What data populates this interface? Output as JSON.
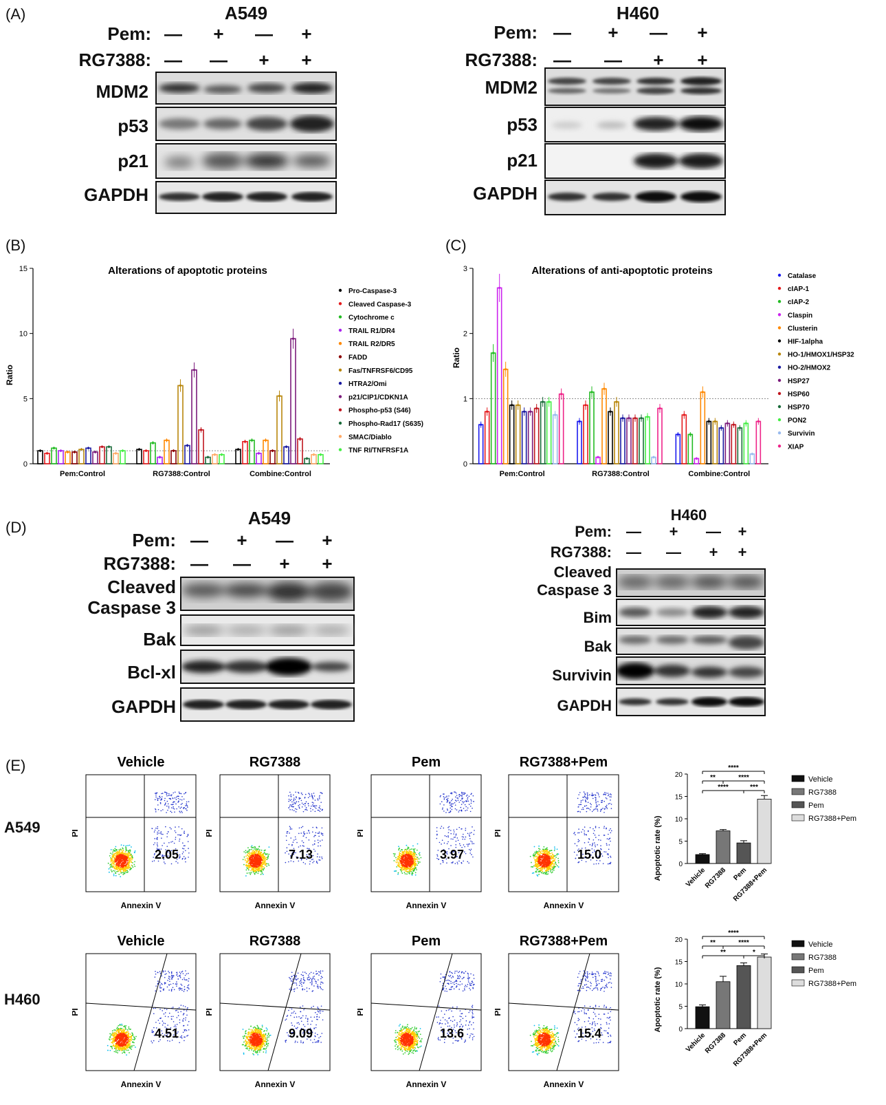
{
  "panels": {
    "A": "(A)",
    "B": "(B)",
    "C": "(C)",
    "D": "(D)",
    "E": "(E)"
  },
  "panelA": {
    "left": {
      "title": "A549",
      "pem_label": "Pem:",
      "rg_label": "RG7388:",
      "pem": [
        "—",
        "+",
        "—",
        "+"
      ],
      "rg": [
        "—",
        "—",
        "+",
        "+"
      ],
      "rows": [
        "MDM2",
        "p53",
        "p21",
        "GAPDH"
      ]
    },
    "right": {
      "title": "H460",
      "pem_label": "Pem:",
      "rg_label": "RG7388:",
      "pem": [
        "—",
        "+",
        "—",
        "+"
      ],
      "rg": [
        "—",
        "—",
        "+",
        "+"
      ],
      "rows": [
        "MDM2",
        "p53",
        "p21",
        "GAPDH"
      ]
    }
  },
  "panelD": {
    "left": {
      "title": "A549",
      "pem_label": "Pem:",
      "rg_label": "RG7388:",
      "pem": [
        "—",
        "+",
        "—",
        "+"
      ],
      "rg": [
        "—",
        "—",
        "+",
        "+"
      ],
      "rows": [
        "Cleaved",
        "Caspase 3",
        "Bak",
        "Bcl-xl",
        "GAPDH"
      ]
    },
    "right": {
      "title": "H460",
      "pem_label": "Pem:",
      "rg_label": "RG7388:",
      "pem": [
        "—",
        "+",
        "—",
        "+"
      ],
      "rg": [
        "—",
        "—",
        "+",
        "+"
      ],
      "rows": [
        "Cleaved",
        "Caspase 3",
        "Bim",
        "Bak",
        "Survivin",
        "GAPDH"
      ]
    }
  },
  "panelE": {
    "rows": [
      "A549",
      "H460"
    ],
    "titles": [
      "Vehicle",
      "RG7388",
      "Pem",
      "RG7388+Pem"
    ],
    "xlabel": "Annexin V",
    "ylabel": "PI",
    "a549_values": [
      "2.05",
      "7.13",
      "3.97",
      "15.0"
    ],
    "h460_values": [
      "4.51",
      "9.09",
      "13.6",
      "15.4"
    ],
    "bar_ylabel": "Apoptotic rate (%)",
    "bar_legend": [
      "Vehicle",
      "RG7388",
      "Pem",
      "RG7388+Pem"
    ],
    "sig_a549": [
      "****",
      "**",
      "****",
      "****",
      "***"
    ],
    "sig_h460": [
      "****",
      "**",
      "**",
      "****",
      "*"
    ]
  },
  "chart_data": [
    {
      "type": "bar",
      "title": "Alterations of apoptotic proteins",
      "ylabel": "Ratio",
      "ylim": [
        0,
        15
      ],
      "yticks": [
        0,
        5,
        10,
        15
      ],
      "categories": [
        "Pem:Control",
        "RG7388:Control",
        "Combine:Control"
      ],
      "series": [
        {
          "name": "Pro-Caspase-3",
          "color": "#000000",
          "values": [
            1.0,
            1.1,
            1.1
          ]
        },
        {
          "name": "Cleaved Caspase-3",
          "color": "#e41a1c",
          "values": [
            0.8,
            1.0,
            1.7
          ]
        },
        {
          "name": "Cytochrome c",
          "color": "#22bb22",
          "values": [
            1.2,
            1.6,
            1.8
          ]
        },
        {
          "name": "TRAIL R1/DR4",
          "color": "#aa22ee",
          "values": [
            1.0,
            0.5,
            0.8
          ]
        },
        {
          "name": "TRAIL R2/DR5",
          "color": "#ff8800",
          "values": [
            0.9,
            1.8,
            1.8
          ]
        },
        {
          "name": "FADD",
          "color": "#8b0000",
          "values": [
            0.9,
            1.0,
            1.0
          ]
        },
        {
          "name": "Fas/TNFRSF6/CD95",
          "color": "#b8860b",
          "values": [
            1.1,
            6.0,
            5.2
          ]
        },
        {
          "name": "HTRA2/Omi",
          "color": "#1a1aa0",
          "values": [
            1.2,
            1.4,
            1.3
          ]
        },
        {
          "name": "p21/CIP1/CDKN1A",
          "color": "#7b1a7b",
          "values": [
            0.9,
            7.2,
            9.6
          ]
        },
        {
          "name": "Phospho-p53 (S46)",
          "color": "#c0151e",
          "values": [
            1.3,
            2.6,
            1.9
          ]
        },
        {
          "name": "Phospho-Rad17 (S635)",
          "color": "#1a6b3a",
          "values": [
            1.3,
            0.5,
            0.4
          ]
        },
        {
          "name": "SMAC/Diablo",
          "color": "#ffaa66",
          "values": [
            0.8,
            0.7,
            0.7
          ]
        },
        {
          "name": "TNF RI/TNFRSF1A",
          "color": "#44ee44",
          "values": [
            1.0,
            0.7,
            0.7
          ]
        }
      ]
    },
    {
      "type": "bar",
      "title": "Alterations of anti-apoptotic proteins",
      "ylabel": "Ratio",
      "ylim": [
        0,
        3
      ],
      "yticks": [
        0,
        1,
        2,
        3
      ],
      "categories": [
        "Pem:Control",
        "RG7388:Control",
        "Combine:Control"
      ],
      "series": [
        {
          "name": "Catalase",
          "color": "#1a1aee",
          "values": [
            0.6,
            0.65,
            0.45
          ]
        },
        {
          "name": "cIAP-1",
          "color": "#e41a1c",
          "values": [
            0.8,
            0.9,
            0.75
          ]
        },
        {
          "name": "cIAP-2",
          "color": "#22bb22",
          "values": [
            1.7,
            1.1,
            0.45
          ]
        },
        {
          "name": "Claspin",
          "color": "#cc22ee",
          "values": [
            2.7,
            0.1,
            0.08
          ]
        },
        {
          "name": "Clusterin",
          "color": "#ff8800",
          "values": [
            1.45,
            1.15,
            1.1
          ]
        },
        {
          "name": "HIF-1alpha",
          "color": "#000000",
          "values": [
            0.9,
            0.8,
            0.65
          ]
        },
        {
          "name": "HO-1/HMOX1/HSP32",
          "color": "#b8860b",
          "values": [
            0.9,
            0.95,
            0.65
          ]
        },
        {
          "name": "HO-2/HMOX2",
          "color": "#1a1aa0",
          "values": [
            0.8,
            0.7,
            0.55
          ]
        },
        {
          "name": "HSP27",
          "color": "#7b1a7b",
          "values": [
            0.8,
            0.7,
            0.62
          ]
        },
        {
          "name": "HSP60",
          "color": "#c0151e",
          "values": [
            0.85,
            0.7,
            0.6
          ]
        },
        {
          "name": "HSP70",
          "color": "#1a6b3a",
          "values": [
            0.95,
            0.7,
            0.55
          ]
        },
        {
          "name": "PON2",
          "color": "#44ee44",
          "values": [
            0.95,
            0.72,
            0.62
          ]
        },
        {
          "name": "Survivin",
          "color": "#99bbee",
          "values": [
            0.75,
            0.1,
            0.15
          ]
        },
        {
          "name": "XIAP",
          "color": "#ee2288",
          "values": [
            1.07,
            0.85,
            0.65
          ]
        }
      ]
    },
    {
      "type": "bar",
      "ylabel": "Apoptotic rate (%)",
      "ylim": [
        0,
        20
      ],
      "yticks": [
        0,
        5,
        10,
        15,
        20
      ],
      "categories": [
        "Vehicle",
        "RG7388",
        "Pem",
        "RG7388+Pem"
      ],
      "values": [
        2.0,
        7.3,
        4.6,
        14.4
      ],
      "errors": [
        0.2,
        0.3,
        0.5,
        0.8
      ]
    },
    {
      "type": "bar",
      "ylabel": "Apoptotic rate (%)",
      "ylim": [
        0,
        20
      ],
      "yticks": [
        0,
        5,
        10,
        15,
        20
      ],
      "categories": [
        "Vehicle",
        "RG7388",
        "Pem",
        "RG7388+Pem"
      ],
      "values": [
        4.9,
        10.5,
        14.1,
        16.0
      ],
      "errors": [
        0.4,
        1.2,
        0.6,
        0.7
      ]
    }
  ]
}
